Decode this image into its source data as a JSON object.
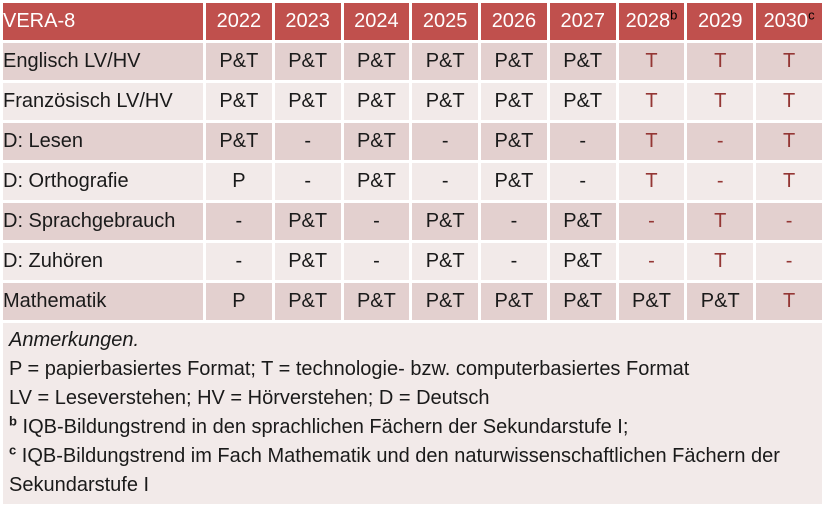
{
  "colors": {
    "header_bg": "#c0504d",
    "header_text": "#ffffff",
    "band_dark": "#e3d0cf",
    "band_light": "#f2eae9",
    "accent_text": "#943634",
    "body_text": "#1a1a1a"
  },
  "table": {
    "title_cell": "VERA-8",
    "year_columns": [
      {
        "text": "2022",
        "sup": ""
      },
      {
        "text": "2023",
        "sup": ""
      },
      {
        "text": "2024",
        "sup": ""
      },
      {
        "text": "2025",
        "sup": ""
      },
      {
        "text": "2026",
        "sup": ""
      },
      {
        "text": "2027",
        "sup": ""
      },
      {
        "text": "2028",
        "sup": "b"
      },
      {
        "text": "2029",
        "sup": ""
      },
      {
        "text": "2030",
        "sup": "c"
      }
    ],
    "rows": [
      {
        "label": "Englisch LV/HV",
        "values": [
          "P&T",
          "P&T",
          "P&T",
          "P&T",
          "P&T",
          "P&T",
          "T",
          "T",
          "T"
        ],
        "red": [
          false,
          false,
          false,
          false,
          false,
          false,
          true,
          true,
          true
        ]
      },
      {
        "label": "Französisch LV/HV",
        "values": [
          "P&T",
          "P&T",
          "P&T",
          "P&T",
          "P&T",
          "P&T",
          "T",
          "T",
          "T"
        ],
        "red": [
          false,
          false,
          false,
          false,
          false,
          false,
          true,
          true,
          true
        ]
      },
      {
        "label": "D: Lesen",
        "values": [
          "P&T",
          "-",
          "P&T",
          "-",
          "P&T",
          "-",
          "T",
          "-",
          "T"
        ],
        "red": [
          false,
          false,
          false,
          false,
          false,
          false,
          true,
          true,
          true
        ]
      },
      {
        "label": "D: Orthografie",
        "values": [
          "P",
          "-",
          "P&T",
          "-",
          "P&T",
          "-",
          "T",
          "-",
          "T"
        ],
        "red": [
          false,
          false,
          false,
          false,
          false,
          false,
          true,
          true,
          true
        ]
      },
      {
        "label": "D: Sprachgebrauch",
        "values": [
          "-",
          "P&T",
          "-",
          "P&T",
          "-",
          "P&T",
          "-",
          "T",
          "-"
        ],
        "red": [
          false,
          false,
          false,
          false,
          false,
          false,
          true,
          true,
          true
        ]
      },
      {
        "label": "D: Zuhören",
        "values": [
          "-",
          "P&T",
          "-",
          "P&T",
          "-",
          "P&T",
          "-",
          "T",
          "-"
        ],
        "red": [
          false,
          false,
          false,
          false,
          false,
          false,
          true,
          true,
          true
        ]
      },
      {
        "label": "Mathematik",
        "values": [
          "P",
          "P&T",
          "P&T",
          "P&T",
          "P&T",
          "P&T",
          "P&T",
          "P&T",
          "T"
        ],
        "red": [
          false,
          false,
          false,
          false,
          false,
          false,
          false,
          false,
          true
        ]
      }
    ]
  },
  "notes": {
    "title": "Anmerkungen.",
    "lines": [
      {
        "sup": "",
        "text": "P = papierbasiertes Format; T = technologie- bzw. computerbasiertes Format"
      },
      {
        "sup": "",
        "text": "LV = Leseverstehen; HV = Hörverstehen; D = Deutsch"
      },
      {
        "sup": "b",
        "text": "IQB-Bildungstrend in den sprachlichen Fächern der Sekundarstufe I;"
      },
      {
        "sup": "c",
        "text": "IQB-Bildungstrend im Fach Mathematik und den naturwissenschaftlichen Fächern der Sekundarstufe I"
      }
    ]
  }
}
